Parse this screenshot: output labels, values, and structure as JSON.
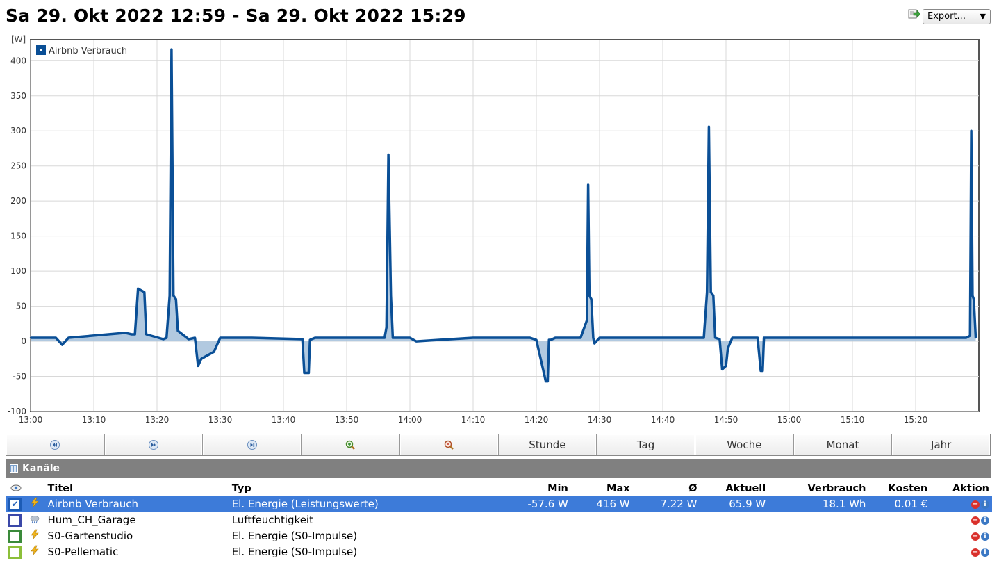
{
  "header": {
    "title": "Sa 29. Okt 2022 12:59 - Sa 29. Okt 2022 15:29",
    "export_label": "Export...",
    "export_icon": "export-icon"
  },
  "chart_data": {
    "type": "area",
    "y_unit_label": "[W]",
    "legend": "Airbnb Verbrauch",
    "legend_placement": "top-left",
    "color": "#0a4f96",
    "fill": "#a9c3dd",
    "ylim": [
      -100,
      430
    ],
    "xlim": [
      "13:00",
      "15:30"
    ],
    "y_ticks": [
      -100,
      -50,
      0,
      50,
      100,
      150,
      200,
      250,
      300,
      350,
      400
    ],
    "x_ticks": [
      "13:00",
      "13:10",
      "13:20",
      "13:30",
      "13:40",
      "13:50",
      "14:00",
      "14:10",
      "14:20",
      "14:30",
      "14:40",
      "14:50",
      "15:00",
      "15:10",
      "15:20"
    ],
    "grid": true,
    "series": [
      {
        "name": "Airbnb Verbrauch",
        "x": [
          "13:00",
          "13:04",
          "13:05",
          "13:06",
          "13:15",
          "13:16",
          "13:16.5",
          "13:17",
          "13:18",
          "13:18.3",
          "13:21",
          "13:21.5",
          "13:22",
          "13:22.3",
          "13:22.6",
          "13:23",
          "13:23.3",
          "13:25",
          "13:26",
          "13:26.5",
          "13:27",
          "13:28",
          "13:29",
          "13:30",
          "13:35",
          "13:43",
          "13:43.3",
          "13:44",
          "13:44.2",
          "13:45",
          "13:55",
          "13:56",
          "13:56.3",
          "13:56.6",
          "13:57",
          "13:57.3",
          "14:00",
          "14:01",
          "14:10",
          "14:19",
          "14:20",
          "14:21.5",
          "14:21.8",
          "14:22",
          "14:22.3",
          "14:23",
          "14:27",
          "14:28",
          "14:28.2",
          "14:28.4",
          "14:28.7",
          "14:29",
          "14:29.2",
          "14:30",
          "14:46",
          "14:46.5",
          "14:47",
          "14:47.3",
          "14:47.6",
          "14:48",
          "14:48.3",
          "14:49",
          "14:49.4",
          "14:50",
          "14:50.3",
          "14:51",
          "14:55",
          "14:55.5",
          "14:55.8",
          "14:56",
          "14:56.3",
          "14:57",
          "15:19",
          "15:20",
          "15:28",
          "15:28.6",
          "15:28.8",
          "15:29",
          "15:29.2",
          "15:29.5"
        ],
        "values": [
          5,
          5,
          -5,
          5,
          12,
          10,
          10,
          75,
          70,
          10,
          3,
          5,
          65,
          416,
          65,
          60,
          15,
          3,
          5,
          -35,
          -25,
          -20,
          -15,
          5,
          5,
          3,
          -45,
          -45,
          2,
          5,
          5,
          5,
          20,
          266,
          65,
          5,
          5,
          0,
          5,
          5,
          2,
          -57,
          -57,
          2,
          2,
          5,
          5,
          30,
          223,
          65,
          60,
          5,
          -3,
          5,
          5,
          5,
          70,
          306,
          70,
          65,
          5,
          3,
          -40,
          -35,
          -10,
          5,
          5,
          -42,
          -42,
          5,
          5,
          5,
          5,
          5,
          5,
          8,
          300,
          65,
          60,
          5
        ]
      }
    ]
  },
  "nav": {
    "buttons": [
      {
        "icon": "rewind-icon",
        "label": ""
      },
      {
        "icon": "fast-forward-icon",
        "label": ""
      },
      {
        "icon": "skip-to-end-icon",
        "label": ""
      },
      {
        "icon": "zoom-in-icon",
        "label": ""
      },
      {
        "icon": "zoom-out-icon",
        "label": ""
      },
      {
        "icon": "",
        "label": "Stunde"
      },
      {
        "icon": "",
        "label": "Tag"
      },
      {
        "icon": "",
        "label": "Woche"
      },
      {
        "icon": "",
        "label": "Monat"
      },
      {
        "icon": "",
        "label": "Jahr"
      }
    ]
  },
  "channels": {
    "header": "Kanäle",
    "columns": {
      "visible": "",
      "title": "Titel",
      "type": "Typ",
      "min": "Min",
      "max": "Max",
      "avg": "Ø",
      "current": "Aktuell",
      "consumption": "Verbrauch",
      "costs": "Kosten",
      "action": "Aktion"
    },
    "rows": [
      {
        "checked": true,
        "color": "#1c5bb5",
        "icon": "lightning-icon",
        "title": "Airbnb Verbrauch",
        "type": "El. Energie (Leistungswerte)",
        "min": "-57.6 W",
        "max": "416 W",
        "avg": "7.22 W",
        "current": "65.9 W",
        "consumption": "18.1 Wh",
        "costs": "0.01 €"
      },
      {
        "checked": false,
        "color": "#3b48a8",
        "icon": "cloud-icon",
        "title": "Hum_CH_Garage",
        "type": "Luftfeuchtigkeit",
        "min": "",
        "max": "",
        "avg": "",
        "current": "",
        "consumption": "",
        "costs": ""
      },
      {
        "checked": false,
        "color": "#3a8a3a",
        "icon": "lightning-icon",
        "title": "S0-Gartenstudio",
        "type": "El. Energie (S0-Impulse)",
        "min": "",
        "max": "",
        "avg": "",
        "current": "",
        "consumption": "",
        "costs": ""
      },
      {
        "checked": false,
        "color": "#8cbf3a",
        "icon": "lightning-icon",
        "title": "S0-Pellematic",
        "type": "El. Energie (S0-Impulse)",
        "min": "",
        "max": "",
        "avg": "",
        "current": "",
        "consumption": "",
        "costs": ""
      }
    ]
  }
}
